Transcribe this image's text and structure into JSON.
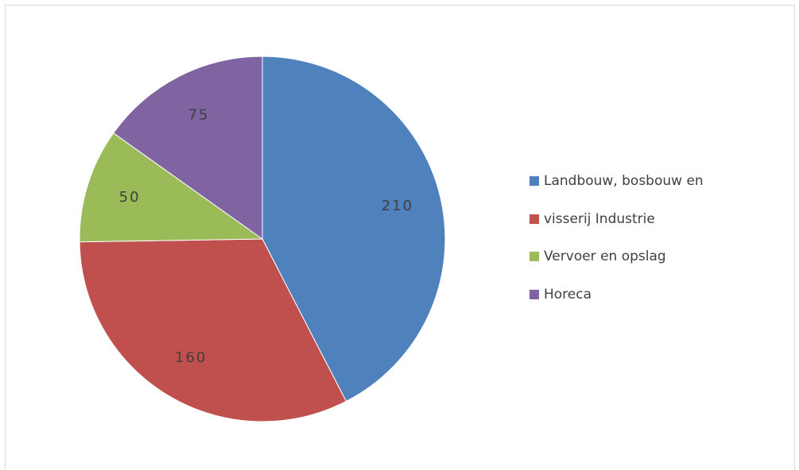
{
  "chart_data": {
    "type": "pie",
    "title": "",
    "categories": [
      "Landbouw, bosbouw en",
      "visserij Industrie",
      "Vervoer en opslag",
      "Horeca"
    ],
    "values": [
      210,
      160,
      50,
      75
    ],
    "data_labels": [
      "210",
      "160",
      "50",
      "75"
    ],
    "colors": [
      "#4f81bd",
      "#c0504d",
      "#9bbb59",
      "#8064a2"
    ],
    "start_angle_deg": 0,
    "direction": "clockwise",
    "legend_position": "right"
  }
}
